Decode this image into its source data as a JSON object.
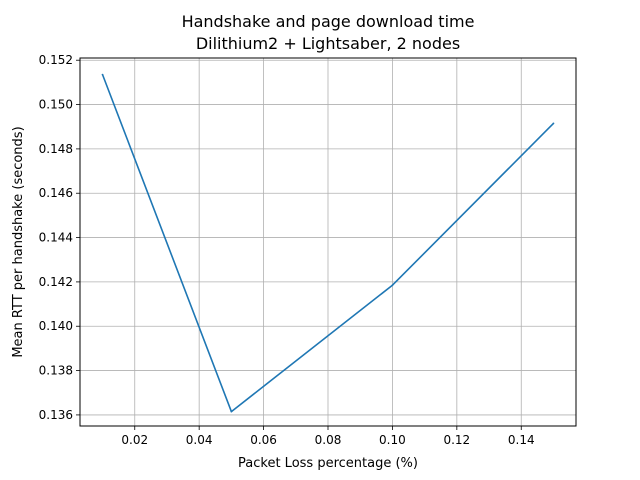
{
  "chart_data": {
    "type": "line",
    "title": "Handshake and page download time",
    "subtitle": "Dilithium2 + Lightsaber, 2 nodes",
    "xlabel": "Packet Loss percentage (%)",
    "ylabel": "Mean RTT per handshake (seconds)",
    "xlim": [
      0.003,
      0.157
    ],
    "ylim": [
      0.1355,
      0.1521
    ],
    "x_ticks": [
      0.02,
      0.04,
      0.06,
      0.08,
      0.1,
      0.12,
      0.14
    ],
    "x_tick_labels": [
      "0.02",
      "0.04",
      "0.06",
      "0.08",
      "0.10",
      "0.12",
      "0.14"
    ],
    "y_ticks": [
      0.136,
      0.138,
      0.14,
      0.142,
      0.144,
      0.146,
      0.148,
      0.15,
      0.152
    ],
    "y_tick_labels": [
      "0.136",
      "0.138",
      "0.140",
      "0.142",
      "0.144",
      "0.146",
      "0.148",
      "0.150",
      "0.152"
    ],
    "grid": true,
    "series": [
      {
        "color": "#1f77b4",
        "x": [
          0.01,
          0.05,
          0.1,
          0.15
        ],
        "y": [
          0.15135,
          0.13615,
          0.14185,
          0.14915
        ]
      }
    ]
  }
}
